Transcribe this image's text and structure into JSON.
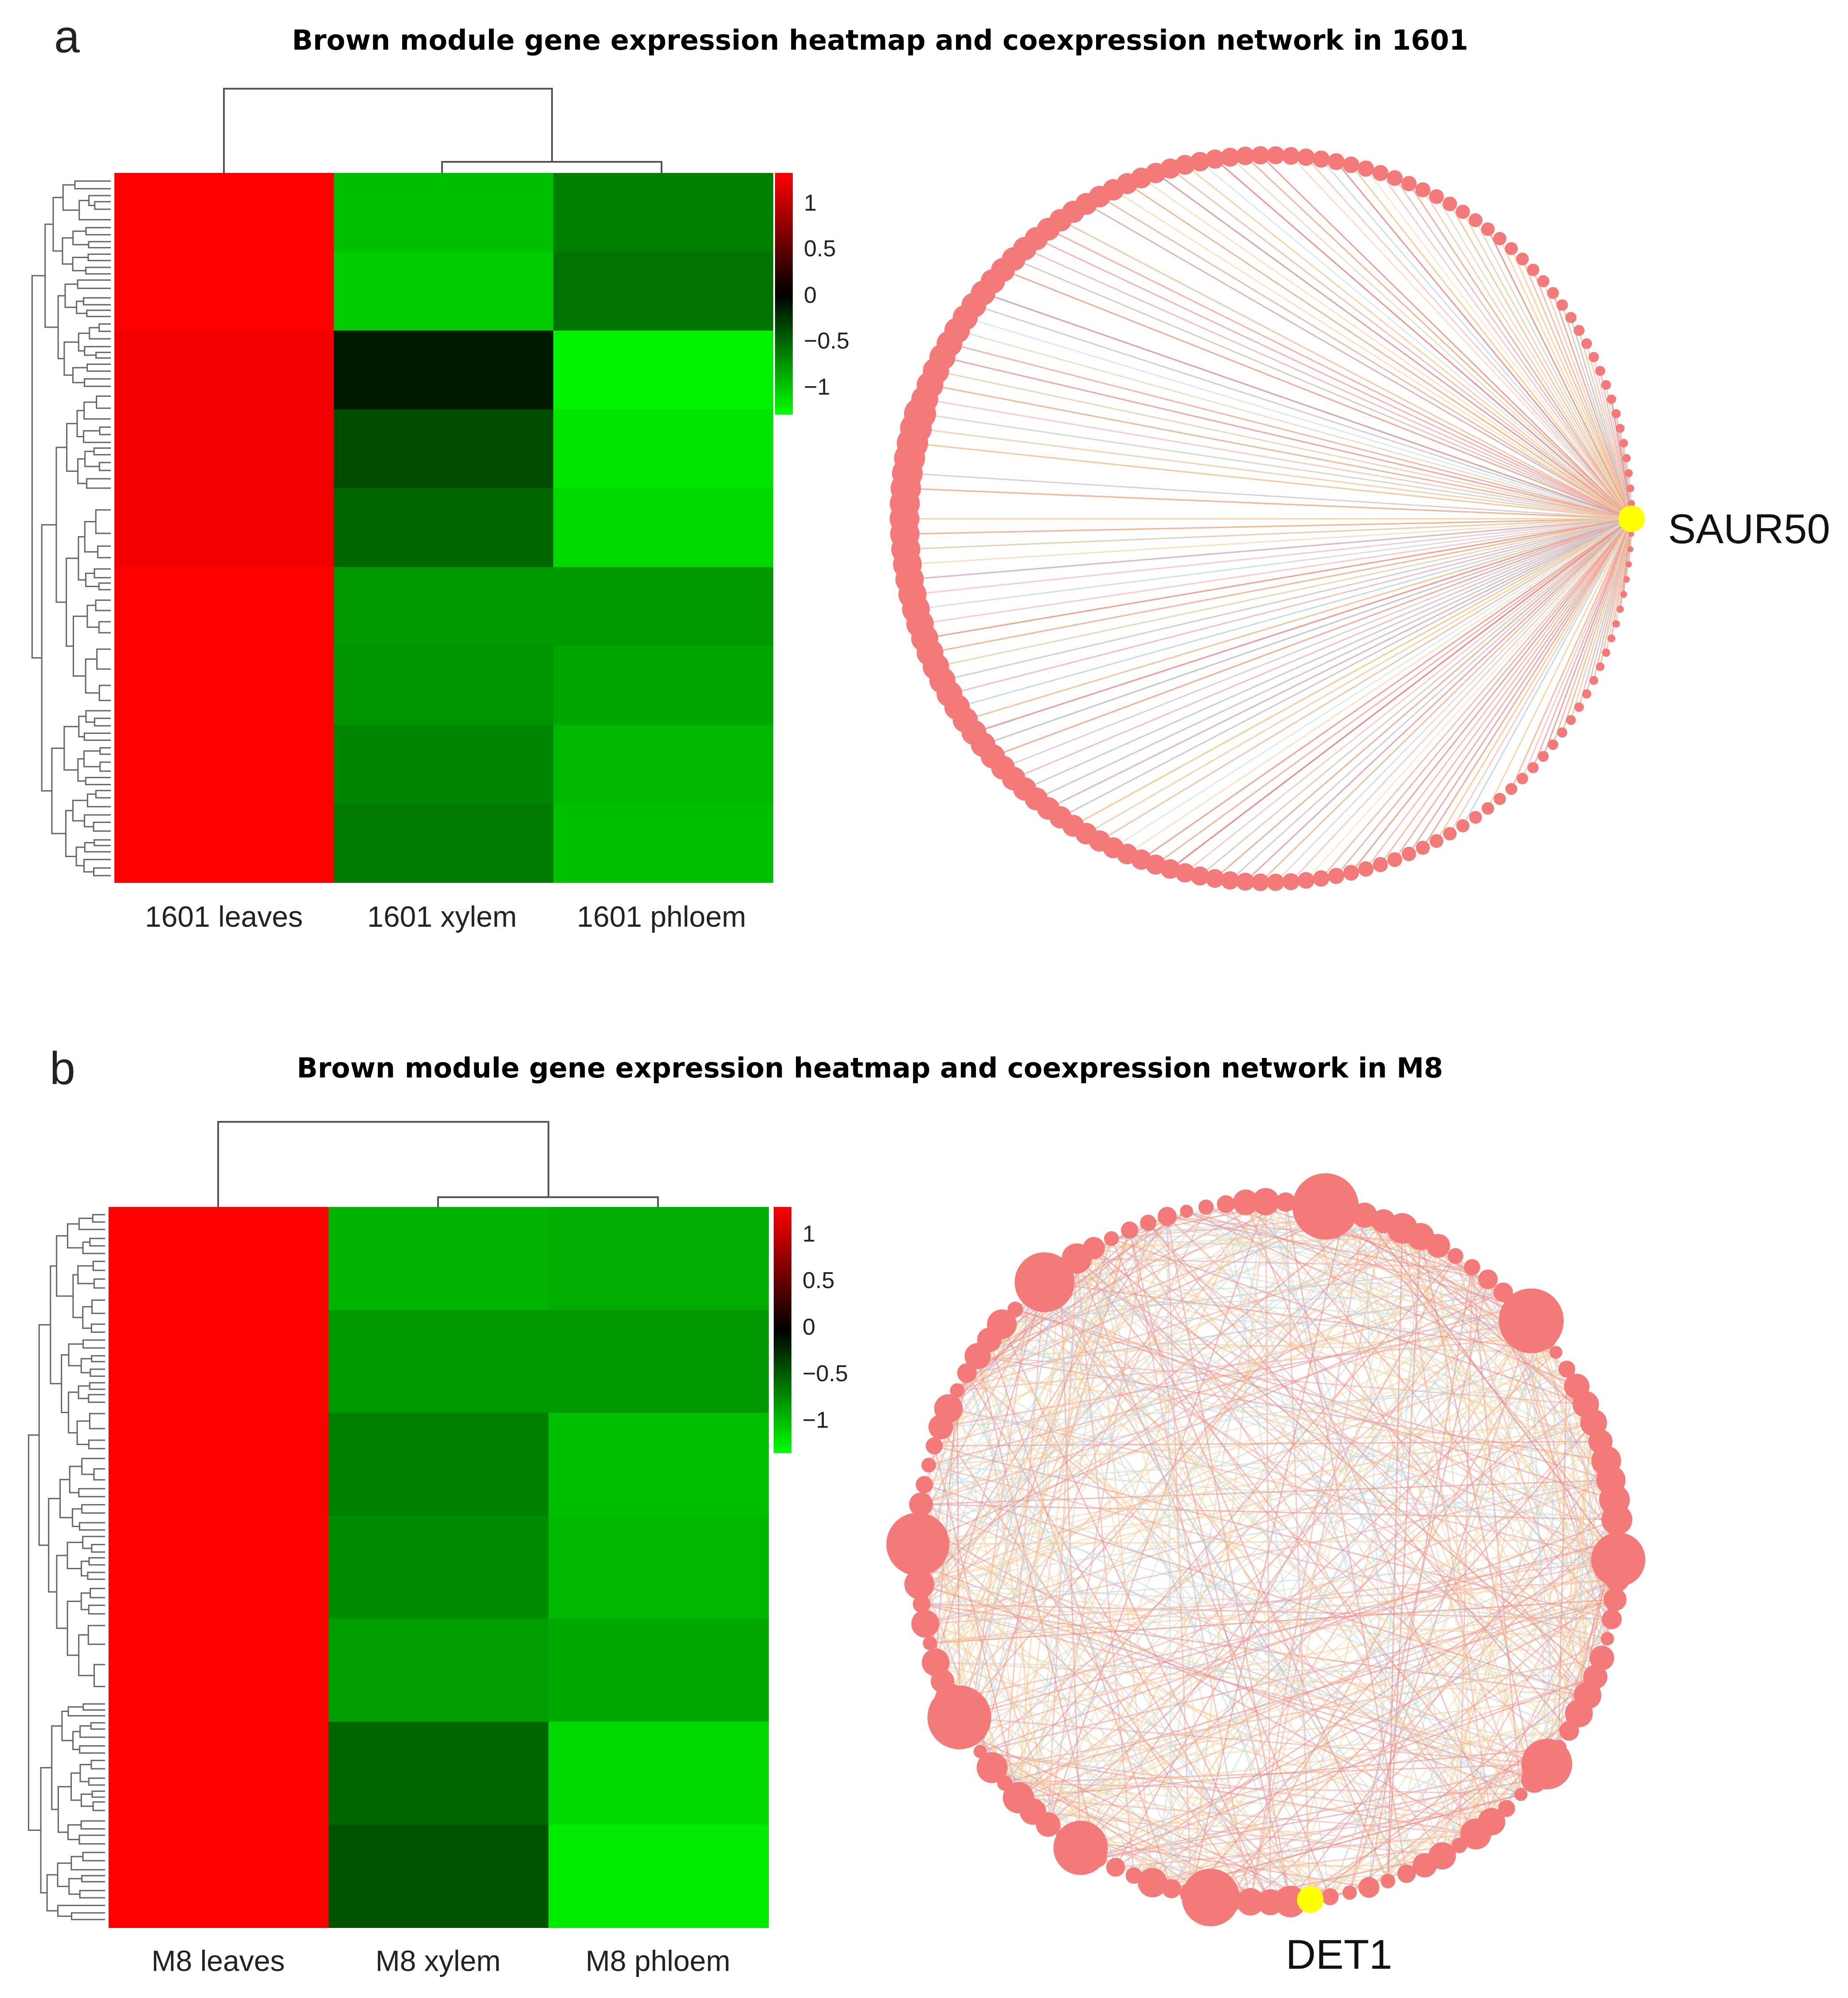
{
  "chart_data": [
    {
      "panel": "a",
      "type": "heatmap",
      "title": "Brown module gene expression heatmap and coexpression network in 1601",
      "columns": [
        "1601 leaves",
        "1601 xylem",
        "1601 phloem"
      ],
      "row_blocks": [
        {
          "values": [
            1.0,
            -0.75,
            -0.5
          ]
        },
        {
          "values": [
            1.0,
            -0.8,
            -0.45
          ]
        },
        {
          "values": [
            0.95,
            -0.1,
            -0.95
          ]
        },
        {
          "values": [
            0.95,
            -0.3,
            -0.9
          ]
        },
        {
          "values": [
            0.95,
            -0.4,
            -0.85
          ]
        },
        {
          "values": [
            1.0,
            -0.6,
            -0.6
          ]
        },
        {
          "values": [
            1.0,
            -0.58,
            -0.65
          ]
        },
        {
          "values": [
            1.0,
            -0.52,
            -0.72
          ]
        },
        {
          "values": [
            1.0,
            -0.48,
            -0.75
          ]
        }
      ],
      "colorbar": {
        "ticks": [
          "1",
          "0.5",
          "0",
          "−0.5",
          "−1"
        ],
        "range": [
          -1.2,
          1.2
        ],
        "low_color": "#00ff00",
        "mid_color": "#000000",
        "high_color": "#ff0000"
      },
      "network": {
        "hub_label": "SAUR50",
        "hub_color": "#ffff00",
        "node_color": "#f47a7a",
        "node_count": 150
      }
    },
    {
      "panel": "b",
      "type": "heatmap",
      "title": "Brown module gene expression heatmap and coexpression network in M8",
      "columns": [
        "M8 leaves",
        "M8 xylem",
        "M8 phloem"
      ],
      "row_blocks": [
        {
          "values": [
            1.0,
            -0.7,
            -0.68
          ]
        },
        {
          "values": [
            1.0,
            -0.6,
            -0.6
          ]
        },
        {
          "values": [
            1.0,
            -0.5,
            -0.75
          ]
        },
        {
          "values": [
            1.0,
            -0.55,
            -0.72
          ]
        },
        {
          "values": [
            1.0,
            -0.62,
            -0.66
          ]
        },
        {
          "values": [
            1.0,
            -0.4,
            -0.85
          ]
        },
        {
          "values": [
            1.0,
            -0.33,
            -0.92
          ]
        }
      ],
      "colorbar": {
        "ticks": [
          "1",
          "0.5",
          "0",
          "−0.5",
          "−1"
        ],
        "range": [
          -1.2,
          1.2
        ],
        "low_color": "#00ff00",
        "mid_color": "#000000",
        "high_color": "#ff0000"
      },
      "network": {
        "hub_label": "DET1",
        "hub_color": "#ffff00",
        "node_color": "#f47a7a",
        "node_count": 110
      }
    }
  ]
}
